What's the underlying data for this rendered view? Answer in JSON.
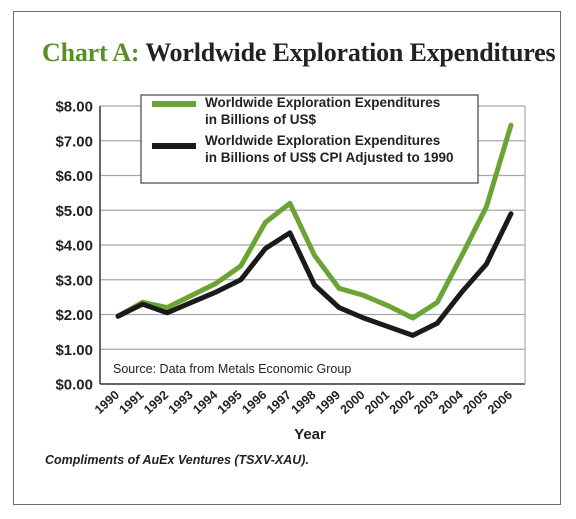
{
  "title_prefix": "Chart A:",
  "title_rest": "Worldwide Exploration Expenditures",
  "credit": "Compliments of AuEx Ventures (TSXV-XAU).",
  "colors": {
    "green": "#6aa336",
    "black": "#1a1a1a",
    "grid": "#a8a8a8"
  },
  "chart_data": {
    "type": "line",
    "title": "Chart A: Worldwide Exploration Expenditures",
    "xlabel": "Year",
    "ylabel": "",
    "categories": [
      "1990",
      "1991",
      "1992",
      "1993",
      "1994",
      "1995",
      "1996",
      "1997",
      "1998",
      "1999",
      "2000",
      "2001",
      "2002",
      "2003",
      "2004",
      "2005",
      "2006"
    ],
    "ylim": [
      0,
      8
    ],
    "y_ticks": [
      "$0.00",
      "$1.00",
      "$2.00",
      "$3.00",
      "$4.00",
      "$5.00",
      "$6.00",
      "$7.00",
      "$8.00"
    ],
    "grid": true,
    "legend_position": "top-center",
    "annotation": "Source: Data from Metals Economic Group",
    "series": [
      {
        "name": "Worldwide Exploration Expenditures in Billions of US$",
        "legend_lines": [
          "Worldwide Exploration Expenditures",
          "in Billions of US$"
        ],
        "color": "#6aa336",
        "values": [
          1.95,
          2.35,
          2.2,
          2.55,
          2.9,
          3.4,
          4.65,
          5.2,
          3.7,
          2.75,
          2.55,
          2.25,
          1.9,
          2.35,
          3.7,
          5.1,
          7.45
        ]
      },
      {
        "name": "Worldwide Exploration Expenditures in Billions of US$ CPI Adjusted to 1990",
        "legend_lines": [
          "Worldwide Exploration Expenditures",
          "in Billions of US$ CPI Adjusted to 1990"
        ],
        "color": "#1a1a1a",
        "values": [
          1.95,
          2.3,
          2.05,
          2.35,
          2.65,
          3.0,
          3.9,
          4.35,
          2.85,
          2.2,
          1.9,
          1.65,
          1.4,
          1.75,
          2.65,
          3.45,
          4.9
        ]
      }
    ]
  }
}
